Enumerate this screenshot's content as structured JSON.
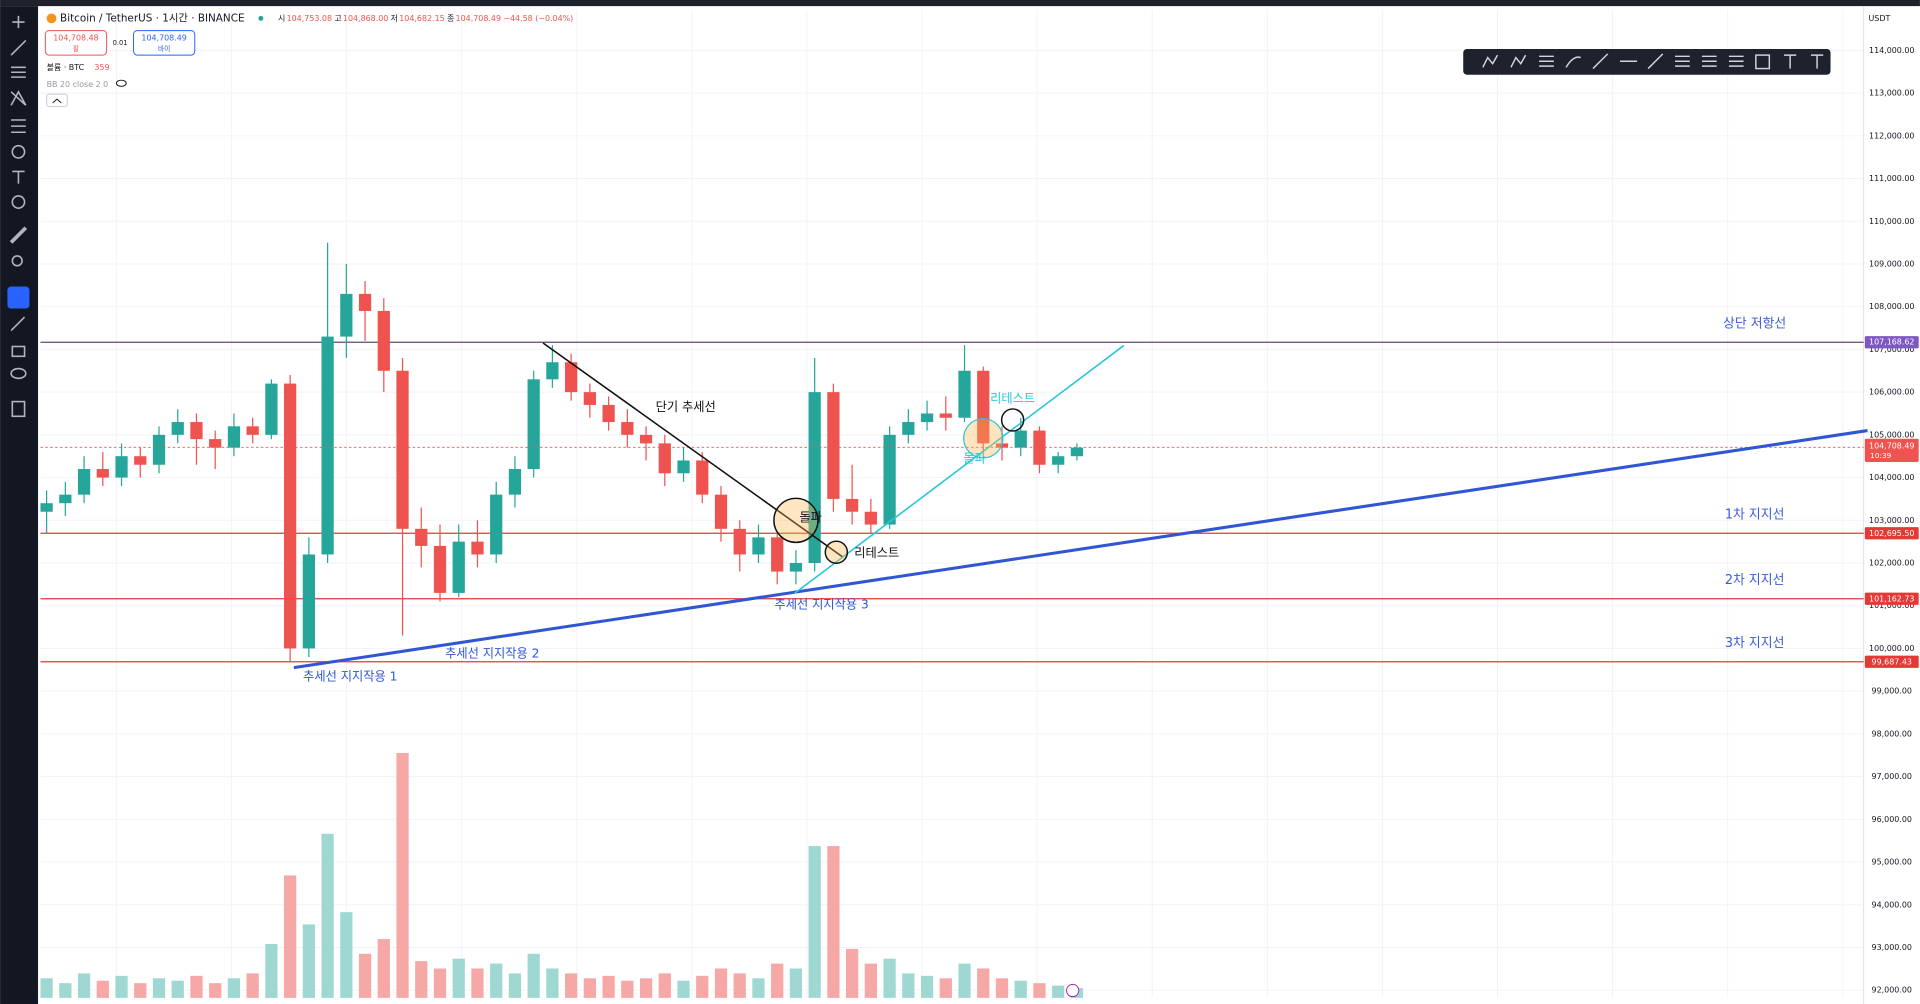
{
  "header": {
    "symbol": "Bitcoin / TetherUS · 1시간 · BINANCE",
    "ohlc": [
      {
        "key": "시",
        "value": "104,753.08"
      },
      {
        "key": "고",
        "value": "104,868.00"
      },
      {
        "key": "저",
        "value": "104,682.15"
      },
      {
        "key": "종",
        "value": "104,708.49"
      }
    ],
    "change": "−44.58 (−0.04%)",
    "sell_price": "104,708.48",
    "sell": "팔",
    "spread": "0.01",
    "buy_price": "104,708.49",
    "buy": "바이",
    "volume_label": "볼륨 · BTC",
    "volume_value": "359",
    "bb": "BB 20 close 2 0",
    "currency": "USDT"
  },
  "chart_data": {
    "type": "candlestick",
    "ylim": [
      91820,
      114950
    ],
    "yticks": [
      {
        "value": 92000,
        "label": "92,000.00"
      },
      {
        "value": 93000,
        "label": "93,000.00"
      },
      {
        "value": 94000,
        "label": "94,000.00"
      },
      {
        "value": 95000,
        "label": "95,000.00"
      },
      {
        "value": 96000,
        "label": "96,000.00"
      },
      {
        "value": 97000,
        "label": "97,000.00"
      },
      {
        "value": 98000,
        "label": "98,000.00"
      },
      {
        "value": 99000,
        "label": "99,000.00"
      },
      {
        "value": 100000,
        "label": "100,000.00"
      },
      {
        "value": 101000,
        "label": "101,000.00"
      },
      {
        "value": 102000,
        "label": "102,000.00"
      },
      {
        "value": 103000,
        "label": "103,000.00"
      },
      {
        "value": 104000,
        "label": "104,000.00"
      },
      {
        "value": 105000,
        "label": "105,000.00"
      },
      {
        "value": 106000,
        "label": "106,000.00"
      },
      {
        "value": 107000,
        "label": "107,000.00"
      },
      {
        "value": 108000,
        "label": "108,000.00"
      },
      {
        "value": 109000,
        "label": "109,000.00"
      },
      {
        "value": 110000,
        "label": "110,000.00"
      },
      {
        "value": 111000,
        "label": "111,000.00"
      },
      {
        "value": 112000,
        "label": "112,000.00"
      },
      {
        "value": 113000,
        "label": "113,000.00"
      },
      {
        "value": 114000,
        "label": "114,000.00"
      }
    ],
    "grid": true,
    "up_color": "#26a69a",
    "down_color": "#ef5350",
    "up_volume_color": "#9fd8d2",
    "down_volume_color": "#f5a8a6",
    "candles": [
      [
        103200,
        103700,
        102700,
        103400
      ],
      [
        103400,
        103900,
        103100,
        103600
      ],
      [
        103600,
        104500,
        103400,
        104200
      ],
      [
        104200,
        104600,
        103800,
        104000
      ],
      [
        104000,
        104800,
        103800,
        104500
      ],
      [
        104500,
        104700,
        104000,
        104300
      ],
      [
        104300,
        105200,
        104100,
        105000
      ],
      [
        105000,
        105600,
        104800,
        105300
      ],
      [
        105300,
        105500,
        104300,
        104900
      ],
      [
        104900,
        105100,
        104200,
        104700
      ],
      [
        104700,
        105500,
        104500,
        105200
      ],
      [
        105200,
        105400,
        104800,
        105000
      ],
      [
        105000,
        106300,
        104900,
        106200
      ],
      [
        106200,
        106400,
        99700,
        100000
      ],
      [
        100000,
        102600,
        99800,
        102200
      ],
      [
        102200,
        109500,
        102000,
        107300
      ],
      [
        107300,
        109000,
        106800,
        108300
      ],
      [
        108300,
        108600,
        107200,
        107900
      ],
      [
        107900,
        108200,
        106000,
        106500
      ],
      [
        106500,
        106800,
        100300,
        102800
      ],
      [
        102800,
        103300,
        101900,
        102400
      ],
      [
        102400,
        102900,
        101100,
        101300
      ],
      [
        101300,
        102900,
        101200,
        102500
      ],
      [
        102500,
        103000,
        101900,
        102200
      ],
      [
        102200,
        103900,
        102000,
        103600
      ],
      [
        103600,
        104500,
        103300,
        104200
      ],
      [
        104200,
        106500,
        104000,
        106300
      ],
      [
        106300,
        107100,
        106100,
        106700
      ],
      [
        106700,
        106900,
        105800,
        106000
      ],
      [
        106000,
        106200,
        105400,
        105700
      ],
      [
        105700,
        105900,
        105100,
        105300
      ],
      [
        105300,
        105600,
        104700,
        105000
      ],
      [
        105000,
        105200,
        104400,
        104800
      ],
      [
        104800,
        105000,
        103800,
        104100
      ],
      [
        104100,
        104700,
        103900,
        104400
      ],
      [
        104400,
        104600,
        103400,
        103600
      ],
      [
        103600,
        103800,
        102500,
        102800
      ],
      [
        102800,
        103000,
        101800,
        102200
      ],
      [
        102200,
        102900,
        102000,
        102600
      ],
      [
        102600,
        102700,
        101500,
        101800
      ],
      [
        101800,
        102300,
        101500,
        102000
      ],
      [
        102000,
        106800,
        101800,
        106000
      ],
      [
        106000,
        106200,
        103200,
        103500
      ],
      [
        103500,
        104300,
        102900,
        103200
      ],
      [
        103200,
        103500,
        102700,
        102900
      ],
      [
        102900,
        105200,
        102800,
        105000
      ],
      [
        105000,
        105600,
        104800,
        105300
      ],
      [
        105300,
        105800,
        105100,
        105500
      ],
      [
        105500,
        105900,
        105100,
        105400
      ],
      [
        105400,
        107100,
        105300,
        106500
      ],
      [
        106500,
        106600,
        104600,
        104800
      ],
      [
        104800,
        105200,
        104400,
        104700
      ],
      [
        104700,
        105400,
        104500,
        105100
      ],
      [
        105100,
        105200,
        104100,
        104300
      ],
      [
        104300,
        104600,
        104100,
        104500
      ],
      [
        104500,
        104800,
        104400,
        104700
      ]
    ],
    "volumes": [
      8,
      6,
      10,
      7,
      9,
      6,
      8,
      7,
      9,
      6,
      8,
      10,
      22,
      50,
      30,
      67,
      35,
      18,
      24,
      100,
      15,
      12,
      16,
      12,
      14,
      10,
      18,
      12,
      10,
      8,
      9,
      7,
      8,
      10,
      7,
      9,
      12,
      10,
      8,
      14,
      12,
      62,
      62,
      20,
      14,
      16,
      10,
      9,
      8,
      14,
      12,
      8,
      7,
      6,
      5,
      4
    ],
    "levels": [
      {
        "name": "상단 저항선",
        "value": 107168.62,
        "label": "107,168.62",
        "color": "#5b4a7d",
        "tag_color": "#7e57c2"
      },
      {
        "name": "1차 지지선",
        "value": 102695.5,
        "label": "102,695.50",
        "color": "#e53935",
        "tag_color": "#e53935"
      },
      {
        "name": "2차 지지선",
        "value": 101162.73,
        "label": "101,162.73",
        "color": "#e53935",
        "tag_color": "#e53935"
      },
      {
        "name": "3차 지지선",
        "value": 99687.43,
        "label": "99,687.43",
        "color": "#e53935",
        "tag_color": "#e53935"
      }
    ],
    "last_price": {
      "value": 104708.49,
      "label": "104,708.49",
      "countdown": "10:39",
      "color": "#ef5350"
    },
    "trendlines": [
      {
        "color": "#3056d3",
        "points": [
          [
            13.2,
            99550
          ],
          [
            97.2,
            105100
          ]
        ]
      },
      {
        "color": "#111111",
        "points": [
          [
            26.5,
            107150
          ],
          [
            42.5,
            102140
          ]
        ]
      },
      {
        "color": "#26c6da",
        "points": [
          [
            39.9,
            101280
          ],
          [
            57.5,
            107090
          ]
        ]
      }
    ],
    "annotations": [
      {
        "text": "단기 추세선",
        "color": "#111111"
      },
      {
        "text": "추세선 지지작용 1",
        "color": "#3056d3"
      },
      {
        "text": "추세선 지지작용 2",
        "color": "#3056d3"
      },
      {
        "text": "추세선 지지작용 3",
        "color": "#3056d3"
      },
      {
        "text": "돌파",
        "color": "#111111"
      },
      {
        "text": "리테스트",
        "color": "#111111"
      },
      {
        "text": "돌파",
        "color": "#26c6da"
      },
      {
        "text": "리테스트",
        "color": "#26c6da"
      }
    ]
  }
}
